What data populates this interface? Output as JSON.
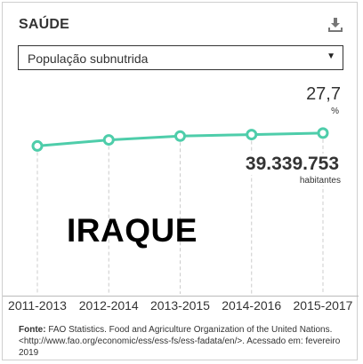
{
  "header": {
    "title": "SAÚDE",
    "download_icon": "download-icon"
  },
  "indicator_select": {
    "value": "População subnutrida",
    "caret_icon": "caret-down-icon"
  },
  "country": "IRAQUE",
  "readouts": {
    "percent_value": "27,7",
    "percent_unit": "%",
    "population_value": "39.339.753",
    "population_unit": "habitantes"
  },
  "source": {
    "label": "Fonte:",
    "text": "FAO Statistics. Food and Agriculture Organization of the United Nations. <http://www.fao.org/economic/ess/ess-fs/ess-fadata/en/>. Acessado em: fevereiro 2019"
  },
  "colors": {
    "line": "#4ecdaa",
    "grid": "#cccccc"
  },
  "chart_data": {
    "type": "line",
    "categories": [
      "2011-2013",
      "2012-2014",
      "2013-2015",
      "2014-2016",
      "2015-2017"
    ],
    "series": [
      {
        "values": [
          26.0,
          26.8,
          27.3,
          27.5,
          27.7
        ]
      }
    ],
    "ylim": [
      0,
      30
    ],
    "grid": "vertical dashed"
  }
}
